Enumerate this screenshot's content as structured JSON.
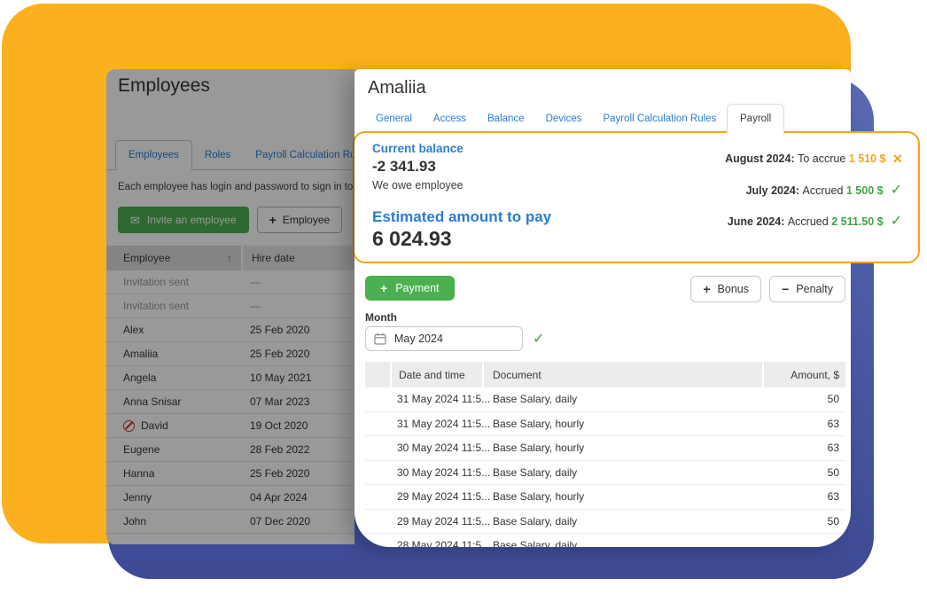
{
  "colors": {
    "bg_yellow": "#FBB11D",
    "bg_blue": "#4F5DAB",
    "accent_orange": "#F5A41C",
    "accent_green": "#43A047",
    "button_green": "#4CAF50",
    "link_blue": "#2B7CD3"
  },
  "left_panel": {
    "title": "Employees",
    "tabs": [
      {
        "label": "Employees",
        "active": true
      },
      {
        "label": "Roles",
        "active": false
      },
      {
        "label": "Payroll Calculation Rules",
        "active": false
      }
    ],
    "description": "Each employee has login and password to sign in to Orc",
    "buttons": {
      "invite": "Invite an employee",
      "add_employee": "Employee"
    },
    "table": {
      "columns": [
        "Employee",
        "Hire date"
      ],
      "sort_icon": "↑",
      "rows": [
        {
          "name": "Invitation sent",
          "date": "—",
          "muted": true
        },
        {
          "name": "Invitation sent",
          "date": "—",
          "muted": true
        },
        {
          "name": "Alex",
          "date": "25 Feb 2020"
        },
        {
          "name": "Amaliia",
          "date": "25 Feb 2020"
        },
        {
          "name": "Angela",
          "date": "10 May 2021"
        },
        {
          "name": "Anna Snisar",
          "date": "07 Mar 2023"
        },
        {
          "name": "David",
          "date": "19 Oct 2020",
          "blocked": true
        },
        {
          "name": "Eugene",
          "date": "28 Feb 2022"
        },
        {
          "name": "Hanna",
          "date": "25 Feb 2020"
        },
        {
          "name": "Jenny",
          "date": "04 Apr 2024"
        },
        {
          "name": "John",
          "date": "07 Dec 2020"
        }
      ]
    }
  },
  "modal": {
    "title": "Amaliia",
    "tabs": [
      {
        "label": "General",
        "active": false
      },
      {
        "label": "Access",
        "active": false
      },
      {
        "label": "Balance",
        "active": false
      },
      {
        "label": "Devices",
        "active": false
      },
      {
        "label": "Payroll Calculation Rules",
        "active": false
      },
      {
        "label": "Payroll",
        "active": true
      }
    ],
    "summary": {
      "current_balance_label": "Current balance",
      "current_balance_value": "-2 341.93",
      "balance_note": "We owe employee",
      "estimated_label": "Estimated amount to pay",
      "estimated_value": "6 024.93"
    },
    "accruals": [
      {
        "month": "August 2024:",
        "action": "To accrue",
        "amount": "1 510 $",
        "status": "pending"
      },
      {
        "month": "July 2024:",
        "action": "Accrued",
        "amount": "1 500 $",
        "status": "done"
      },
      {
        "month": "June 2024:",
        "action": "Accrued",
        "amount": "2 511.50 $",
        "status": "done"
      }
    ],
    "actions": {
      "payment": "Payment",
      "bonus": "Bonus",
      "penalty": "Penalty"
    },
    "month_field": {
      "label": "Month",
      "value": "May 2024"
    },
    "payroll_table": {
      "columns": [
        "Date and time",
        "Document",
        "Amount, $"
      ],
      "rows": [
        {
          "date": "31 May 2024 11:5...",
          "document": "Base Salary, daily",
          "amount": "50"
        },
        {
          "date": "31 May 2024 11:5...",
          "document": "Base Salary, hourly",
          "amount": "63"
        },
        {
          "date": "30 May 2024 11:5...",
          "document": "Base Salary, hourly",
          "amount": "63"
        },
        {
          "date": "30 May 2024 11:5...",
          "document": "Base Salary, daily",
          "amount": "50"
        },
        {
          "date": "29 May 2024 11:5...",
          "document": "Base Salary, hourly",
          "amount": "63"
        },
        {
          "date": "29 May 2024 11:5...",
          "document": "Base Salary, daily",
          "amount": "50"
        },
        {
          "date": "28 May 2024 11:5...",
          "document": "Base Salary, daily",
          "amount": ""
        }
      ]
    }
  }
}
